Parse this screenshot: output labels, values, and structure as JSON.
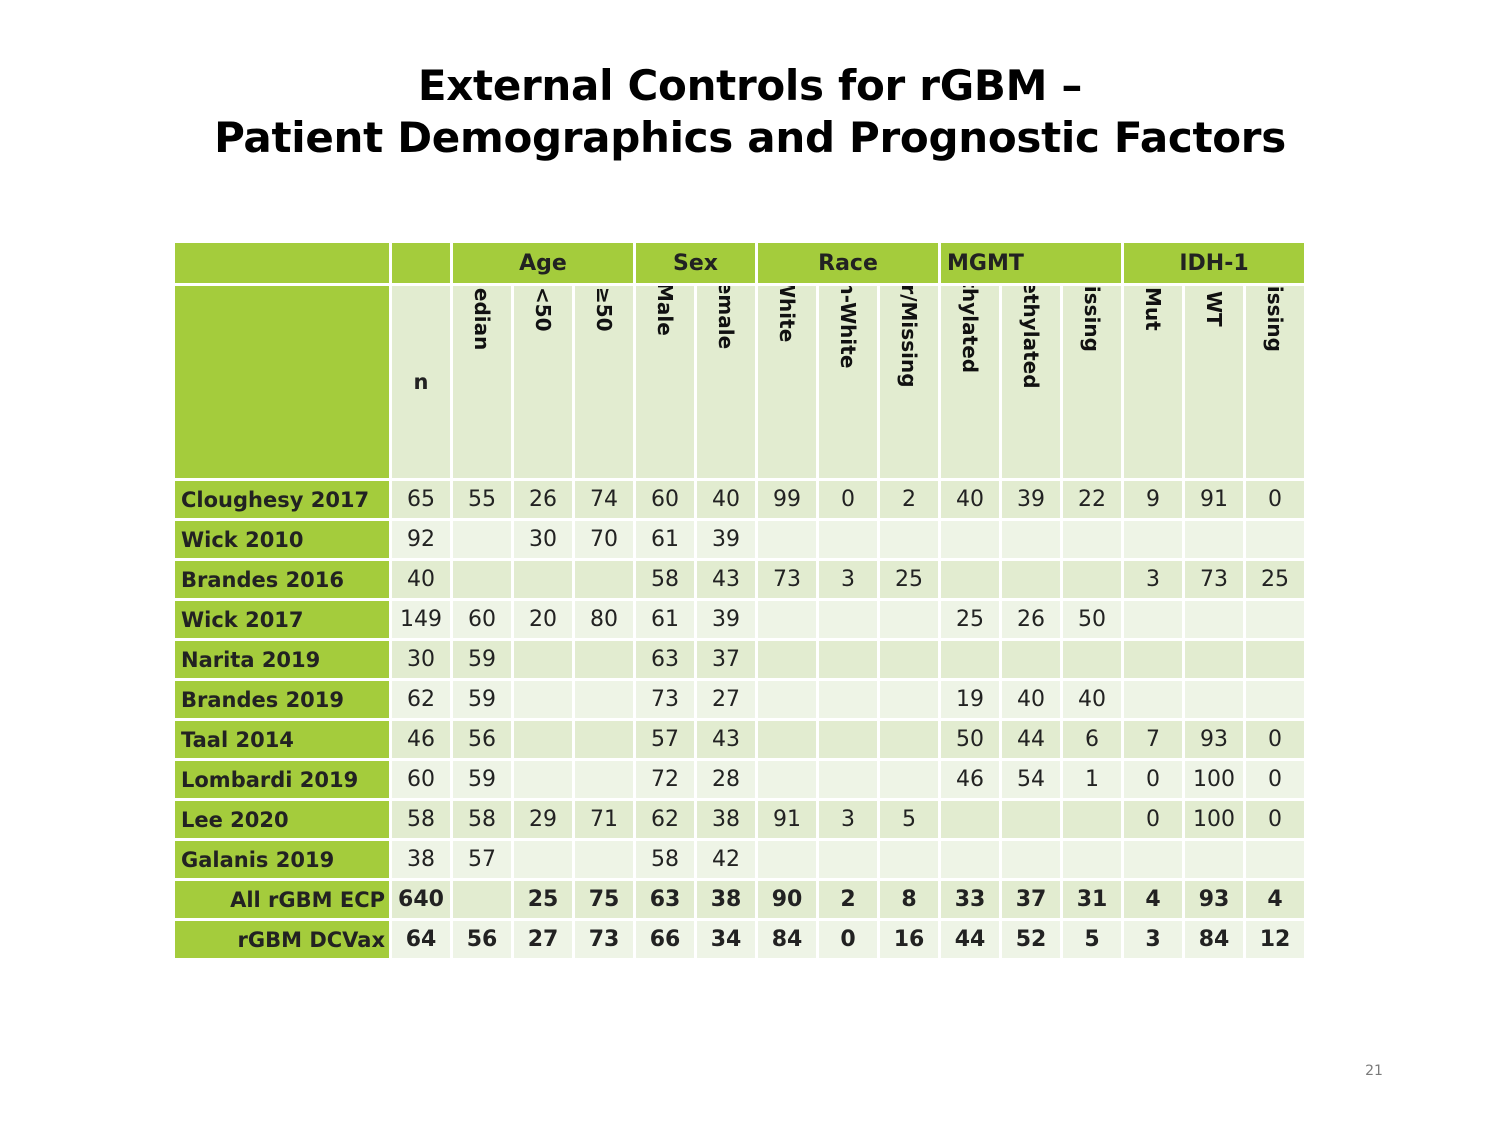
{
  "slide": {
    "title_line1": "External Controls for rGBM –",
    "title_line2": "Patient Demographics and Prognostic Factors",
    "page_number": "21"
  },
  "table": {
    "groups": {
      "age": "Age",
      "sex": "Sex",
      "race": "Race",
      "mgmt": "MGMT",
      "idh1": "IDH-1"
    },
    "columns": [
      "n",
      "Median",
      "<50",
      "≥50",
      "Male",
      "Female",
      "White",
      "Non-White",
      "Other/Missing",
      "Methylated",
      "Unmethylated",
      "Missing",
      "Mut",
      "WT",
      "Missing"
    ],
    "rows": [
      {
        "label": "Cloughesy 2017",
        "values": [
          "65",
          "55",
          "26",
          "74",
          "60",
          "40",
          "99",
          "0",
          "2",
          "40",
          "39",
          "22",
          "9",
          "91",
          "0"
        ]
      },
      {
        "label": "Wick 2010",
        "values": [
          "92",
          "",
          "30",
          "70",
          "61",
          "39",
          "",
          "",
          "",
          "",
          "",
          "",
          "",
          "",
          ""
        ]
      },
      {
        "label": "Brandes 2016",
        "values": [
          "40",
          "",
          "",
          "",
          "58",
          "43",
          "73",
          "3",
          "25",
          "",
          "",
          "",
          "3",
          "73",
          "25"
        ]
      },
      {
        "label": "Wick 2017",
        "values": [
          "149",
          "60",
          "20",
          "80",
          "61",
          "39",
          "",
          "",
          "",
          "25",
          "26",
          "50",
          "",
          "",
          ""
        ]
      },
      {
        "label": "Narita 2019",
        "values": [
          "30",
          "59",
          "",
          "",
          "63",
          "37",
          "",
          "",
          "",
          "",
          "",
          "",
          "",
          "",
          ""
        ]
      },
      {
        "label": "Brandes 2019",
        "values": [
          "62",
          "59",
          "",
          "",
          "73",
          "27",
          "",
          "",
          "",
          "19",
          "40",
          "40",
          "",
          "",
          ""
        ]
      },
      {
        "label": "Taal 2014",
        "values": [
          "46",
          "56",
          "",
          "",
          "57",
          "43",
          "",
          "",
          "",
          "50",
          "44",
          "6",
          "7",
          "93",
          "0"
        ]
      },
      {
        "label": "Lombardi 2019",
        "values": [
          "60",
          "59",
          "",
          "",
          "72",
          "28",
          "",
          "",
          "",
          "46",
          "54",
          "1",
          "0",
          "100",
          "0"
        ]
      },
      {
        "label": "Lee 2020",
        "values": [
          "58",
          "58",
          "29",
          "71",
          "62",
          "38",
          "91",
          "3",
          "5",
          "",
          "",
          "",
          "0",
          "100",
          "0"
        ]
      },
      {
        "label": "Galanis 2019",
        "values": [
          "38",
          "57",
          "",
          "",
          "58",
          "42",
          "",
          "",
          "",
          "",
          "",
          "",
          "",
          "",
          ""
        ]
      },
      {
        "label": "All rGBM ECP",
        "values": [
          "640",
          "",
          "25",
          "75",
          "63",
          "38",
          "90",
          "2",
          "8",
          "33",
          "37",
          "31",
          "4",
          "93",
          "4"
        ]
      },
      {
        "label": "rGBM DCVax",
        "values": [
          "64",
          "56",
          "27",
          "73",
          "66",
          "34",
          "84",
          "0",
          "16",
          "44",
          "52",
          "5",
          "3",
          "84",
          "12"
        ]
      }
    ]
  },
  "colors": {
    "header_green": "#a4cc3c",
    "cell_light_a": "#e2ecd0",
    "cell_light_b": "#eef4e6"
  }
}
